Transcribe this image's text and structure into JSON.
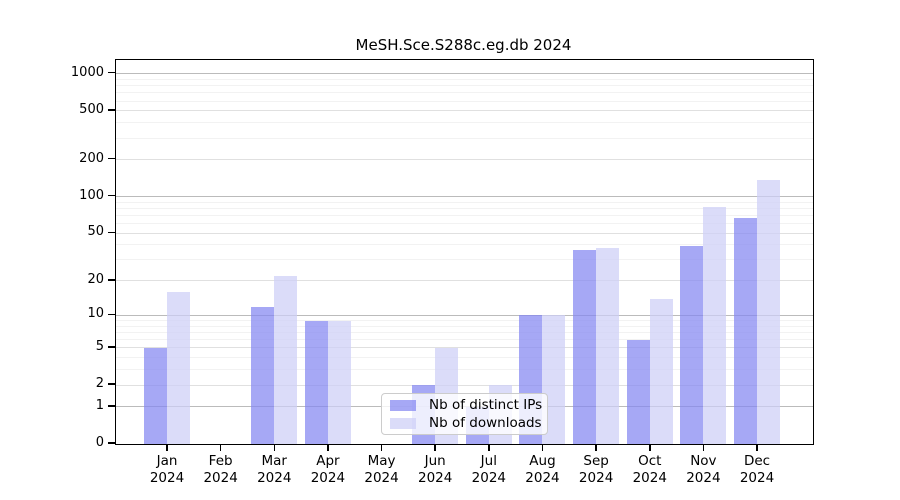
{
  "title": "MeSH.Sce.S288c.eg.db 2024",
  "chart_data": {
    "type": "bar",
    "title": "MeSH.Sce.S288c.eg.db 2024",
    "year_label": "2024",
    "categories": [
      "Jan",
      "Feb",
      "Mar",
      "Apr",
      "May",
      "Jun",
      "Jul",
      "Aug",
      "Sep",
      "Oct",
      "Nov",
      "Dec"
    ],
    "series": [
      {
        "name": "Nb of distinct IPs",
        "color": "rgba(132,134,241,0.72)",
        "values": [
          5,
          0,
          12,
          9,
          0,
          2,
          1,
          10,
          36,
          6,
          39,
          67
        ]
      },
      {
        "name": "Nb of downloads",
        "color": "rgba(205,206,246,0.72)",
        "values": [
          16,
          0,
          22,
          9,
          0,
          5,
          2,
          10,
          38,
          14,
          82,
          137
        ]
      }
    ],
    "y_ticks": [
      0,
      1,
      2,
      5,
      10,
      20,
      50,
      100,
      200,
      500,
      1000
    ],
    "y_minor_ticks": [
      3,
      4,
      6,
      7,
      8,
      9,
      30,
      40,
      60,
      70,
      80,
      90,
      300,
      400,
      600,
      700,
      800,
      900
    ],
    "y_scale": "log1p",
    "ylim": [
      0,
      1293
    ],
    "xlabel": "",
    "ylabel": "",
    "grid": "on",
    "legend_position": "bottom-center",
    "colors": {
      "grid_decade": "#bbbbbb",
      "grid_major": "#e0e0e0",
      "grid_minor": "#f2f2f2",
      "axis": "#000000"
    }
  }
}
